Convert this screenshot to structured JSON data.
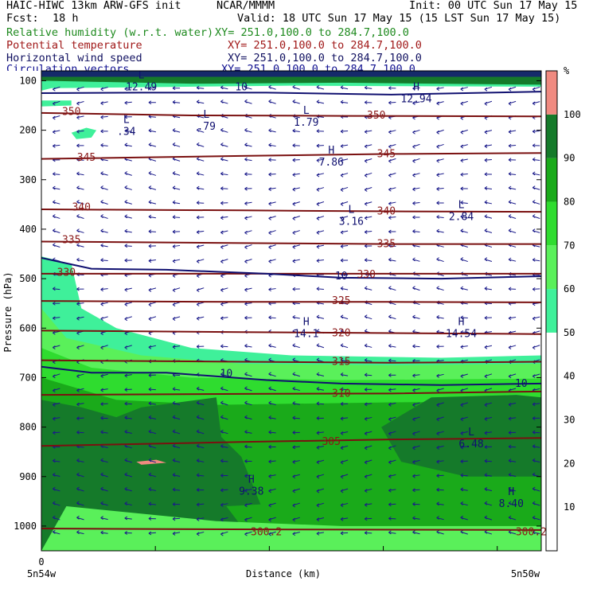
{
  "header": {
    "model": "HAIC-HIWC 13km ARW-GFS init",
    "org": "NCAR/MMMM",
    "init": "Init: 00 UTC Sun 17 May 15",
    "fcst_label": "Fcst:",
    "fcst_value": "18 h",
    "valid": "Valid: 18 UTC Sun 17 May 15 (15 LST Sun 17 May 15)",
    "fields": [
      {
        "name": "Relative humidity (w.r.t. water)",
        "xy": "XY= 251.0,100.0 to 284.7,100.0",
        "color": "#1e8a1e"
      },
      {
        "name": "Potential temperature",
        "xy": "XY= 251.0,100.0 to 284.7,100.0",
        "color": "#a01818"
      },
      {
        "name": "Horizontal wind speed",
        "xy": "XY= 251.0,100.0 to 284.7,100.0",
        "color": "#101060"
      },
      {
        "name": "Circulation vectors",
        "xy": "XY= 251.0,100.0 to 284.7,100.0",
        "color": "#101090"
      }
    ]
  },
  "chart_data": {
    "type": "heatmap",
    "ylabel": "Pressure (hPa)",
    "xlabel": "Distance (km)",
    "x_start_label": "5n54w",
    "x_end_label": "5n50w",
    "x_tick_labels": [
      "0"
    ],
    "y_ticks": [
      100,
      200,
      300,
      400,
      500,
      600,
      700,
      800,
      900,
      1000
    ],
    "ylim": [
      1050,
      80
    ],
    "colorbar": {
      "unit": "%",
      "levels": [
        10,
        20,
        30,
        40,
        50,
        60,
        70,
        80,
        90,
        100
      ],
      "colors": [
        "#ffffff",
        "#ffffff",
        "#ffffff",
        "#ffffff",
        "#ffffff",
        "#3ff09a",
        "#5af05a",
        "#2fdc2f",
        "#1aaa1a",
        "#157a2a",
        "#f08a80"
      ]
    },
    "theta_contours": [
      {
        "value": 350,
        "points": [
          [
            0,
            165
          ],
          [
            0.3,
            170
          ],
          [
            0.6,
            171
          ],
          [
            1,
            172
          ]
        ]
      },
      {
        "value": 345,
        "points": [
          [
            0,
            258
          ],
          [
            0.4,
            252
          ],
          [
            0.7,
            248
          ],
          [
            1,
            246
          ]
        ]
      },
      {
        "value": 340,
        "points": [
          [
            0,
            360
          ],
          [
            0.4,
            362
          ],
          [
            0.7,
            364
          ],
          [
            1,
            365
          ]
        ]
      },
      {
        "value": 335,
        "points": [
          [
            0,
            425
          ],
          [
            0.4,
            428
          ],
          [
            0.7,
            430
          ],
          [
            1,
            430
          ]
        ]
      },
      {
        "value": 330,
        "points": [
          [
            0,
            490
          ],
          [
            0.4,
            490
          ],
          [
            0.7,
            490
          ],
          [
            1,
            490
          ]
        ]
      },
      {
        "value": 325,
        "points": [
          [
            0,
            545
          ],
          [
            0.4,
            547
          ],
          [
            0.7,
            547
          ],
          [
            1,
            548
          ]
        ]
      },
      {
        "value": 320,
        "points": [
          [
            0,
            605
          ],
          [
            0.4,
            608
          ],
          [
            0.7,
            610
          ],
          [
            1,
            612
          ]
        ]
      },
      {
        "value": 315,
        "points": [
          [
            0,
            665
          ],
          [
            0.4,
            668
          ],
          [
            0.7,
            670
          ],
          [
            1,
            668
          ]
        ]
      },
      {
        "value": 310,
        "points": [
          [
            0,
            735
          ],
          [
            0.4,
            733
          ],
          [
            0.7,
            732
          ],
          [
            1,
            728
          ]
        ]
      },
      {
        "value": 305,
        "points": [
          [
            0,
            838
          ],
          [
            0.4,
            830
          ],
          [
            0.7,
            825
          ],
          [
            1,
            822
          ]
        ]
      },
      {
        "value": 300.2,
        "points": [
          [
            0,
            1005
          ],
          [
            0.5,
            1007
          ],
          [
            1,
            1008
          ]
        ]
      }
    ],
    "theta_labels": [
      {
        "text": "350",
        "x": 0.06,
        "p": 163
      },
      {
        "text": "350",
        "x": 0.67,
        "p": 170
      },
      {
        "text": "345",
        "x": 0.09,
        "p": 255
      },
      {
        "text": "345",
        "x": 0.69,
        "p": 248
      },
      {
        "text": "340",
        "x": 0.08,
        "p": 356
      },
      {
        "text": "340",
        "x": 0.69,
        "p": 364
      },
      {
        "text": "335",
        "x": 0.06,
        "p": 422
      },
      {
        "text": "335",
        "x": 0.69,
        "p": 430
      },
      {
        "text": "330",
        "x": 0.05,
        "p": 488
      },
      {
        "text": "330",
        "x": 0.65,
        "p": 492
      },
      {
        "text": "325",
        "x": 0.6,
        "p": 545
      },
      {
        "text": "320",
        "x": 0.6,
        "p": 610
      },
      {
        "text": "315",
        "x": 0.6,
        "p": 668
      },
      {
        "text": "310",
        "x": 0.6,
        "p": 732
      },
      {
        "text": "305",
        "x": 0.58,
        "p": 830
      },
      {
        "text": "300.2",
        "x": 0.45,
        "p": 1012
      },
      {
        "text": "300.2",
        "x": 0.98,
        "p": 1012
      }
    ],
    "wind_contours": [
      {
        "value": 10,
        "points": [
          [
            0,
            458
          ],
          [
            0.1,
            480
          ],
          [
            0.25,
            482
          ],
          [
            0.45,
            490
          ],
          [
            0.6,
            498
          ],
          [
            0.8,
            500
          ],
          [
            1,
            495
          ]
        ]
      },
      {
        "value": 10,
        "points": [
          [
            0,
            678
          ],
          [
            0.1,
            690
          ],
          [
            0.25,
            690
          ],
          [
            0.45,
            705
          ],
          [
            0.6,
            712
          ],
          [
            0.8,
            715
          ],
          [
            1,
            712
          ]
        ]
      },
      {
        "value": 10,
        "points": [
          [
            0,
            125
          ],
          [
            0.2,
            124
          ],
          [
            0.45,
            124
          ],
          [
            0.7,
            128
          ],
          [
            1,
            122
          ]
        ]
      }
    ],
    "wind_labels": [
      {
        "text": "10",
        "x": 0.6,
        "p": 495
      },
      {
        "text": "10",
        "x": 0.37,
        "p": 692
      },
      {
        "text": "10",
        "x": 0.96,
        "p": 712
      },
      {
        "text": "10",
        "x": 0.4,
        "p": 113
      }
    ],
    "extrema": [
      {
        "type": "L",
        "value": ".34",
        "x": 0.17,
        "p": 198
      },
      {
        "type": "L",
        "value": ".79",
        "x": 0.33,
        "p": 188
      },
      {
        "type": "L",
        "value": "1.79",
        "x": 0.53,
        "p": 180
      },
      {
        "type": "H",
        "value": "12.94",
        "x": 0.75,
        "p": 132
      },
      {
        "type": "H",
        "value": "7.86",
        "x": 0.58,
        "p": 260
      },
      {
        "type": "L",
        "value": "3.16",
        "x": 0.62,
        "p": 380
      },
      {
        "type": "L",
        "value": "2.84",
        "x": 0.84,
        "p": 370
      },
      {
        "type": "H",
        "value": "14.1",
        "x": 0.53,
        "p": 607
      },
      {
        "type": "H",
        "value": "14.54",
        "x": 0.84,
        "p": 607
      },
      {
        "type": "L",
        "value": "6.48",
        "x": 0.86,
        "p": 830
      },
      {
        "type": "H",
        "value": "9.38",
        "x": 0.42,
        "p": 925
      },
      {
        "type": "H",
        "value": "8.40",
        "x": 0.94,
        "p": 950
      },
      {
        "type": "L",
        "value": "12.49",
        "x": 0.2,
        "p": 108
      }
    ]
  }
}
